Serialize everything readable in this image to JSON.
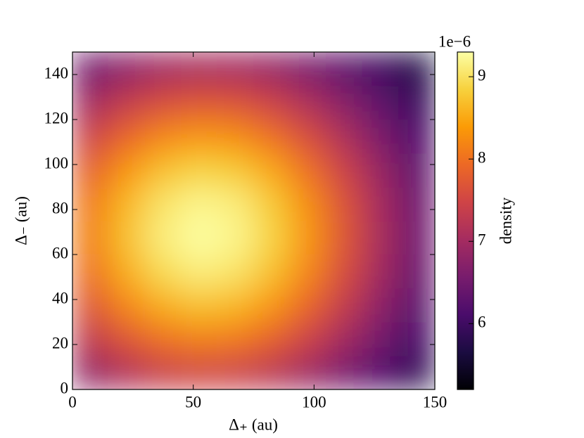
{
  "chart_data": {
    "type": "heatmap",
    "xlabel": "Δ₊ (au)",
    "ylabel": "Δ₋ (au)",
    "x": [
      7.5,
      22.5,
      37.5,
      52.5,
      67.5,
      82.5,
      97.5,
      112.5,
      127.5,
      142.5
    ],
    "y": [
      7.5,
      22.5,
      37.5,
      52.5,
      67.5,
      82.5,
      97.5,
      112.5,
      127.5,
      142.5
    ],
    "values": [
      [
        6.83,
        7.16,
        7.4,
        7.5,
        7.45,
        7.25,
        6.95,
        6.58,
        6.2,
        5.86
      ],
      [
        7.3,
        7.71,
        8.01,
        8.14,
        8.08,
        7.83,
        7.45,
        6.99,
        6.52,
        6.08
      ],
      [
        7.71,
        8.21,
        8.56,
        8.71,
        8.63,
        8.34,
        7.89,
        7.35,
        6.79,
        6.28
      ],
      [
        8.01,
        8.56,
        8.95,
        9.12,
        9.03,
        8.71,
        8.21,
        7.6,
        6.99,
        6.42
      ],
      [
        8.14,
        8.71,
        9.12,
        9.29,
        9.2,
        8.87,
        8.34,
        7.71,
        7.07,
        6.48
      ],
      [
        8.08,
        8.63,
        9.03,
        9.2,
        9.12,
        8.79,
        8.27,
        7.66,
        7.03,
        6.45
      ],
      [
        7.83,
        8.34,
        8.71,
        8.87,
        8.79,
        8.49,
        8.01,
        7.45,
        6.87,
        6.34
      ],
      [
        7.45,
        7.89,
        8.21,
        8.34,
        8.27,
        8.01,
        7.6,
        7.11,
        6.61,
        6.16
      ],
      [
        6.99,
        7.35,
        7.6,
        7.71,
        7.66,
        7.45,
        7.11,
        6.72,
        6.31,
        5.94
      ],
      [
        6.52,
        6.79,
        6.99,
        7.07,
        7.03,
        6.87,
        6.61,
        6.31,
        6.0,
        5.72
      ]
    ],
    "xlim": [
      0,
      150
    ],
    "ylim": [
      0,
      150
    ],
    "xticks": [
      0,
      50,
      100,
      150
    ],
    "yticks": [
      0,
      20,
      40,
      60,
      80,
      100,
      120,
      140
    ],
    "colorbar": {
      "label": "density",
      "offset_text": "1e−6",
      "cmap": "inferno",
      "clim": [
        5.2,
        9.3
      ],
      "ticks": [
        6,
        7,
        8,
        9
      ]
    }
  }
}
